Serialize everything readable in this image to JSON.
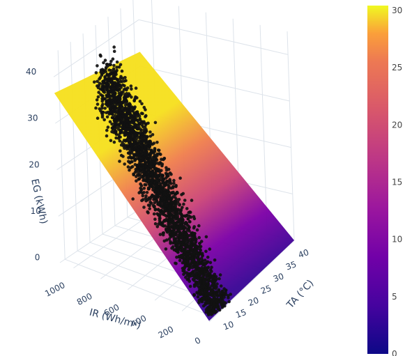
{
  "chart_data": {
    "type": "scatter",
    "subtype": "3d-scatter-with-fitted-plane",
    "axes": {
      "x": {
        "label": "TA (°C)",
        "ticks": [
          "10",
          "15",
          "20",
          "25",
          "30",
          "35",
          "40"
        ],
        "range": [
          8,
          42
        ]
      },
      "y": {
        "label": "IR (Wh/m²)",
        "ticks": [
          "0",
          "200",
          "400",
          "600",
          "800",
          "1000"
        ],
        "range": [
          0,
          1100
        ]
      },
      "z": {
        "label": "EG (kWh)",
        "ticks": [
          "0",
          "10",
          "20",
          "30",
          "40"
        ],
        "range": [
          0,
          45
        ]
      }
    },
    "colorbar": {
      "ticks": [
        "0",
        "5",
        "10",
        "15",
        "20",
        "25",
        "30"
      ],
      "range": [
        0,
        30
      ],
      "colorscale": "plasma"
    },
    "plane": {
      "color_by": "EG",
      "approx_fit": "EG ≈ 0.033 × IR − 0.1 × (TA − 10)"
    },
    "points": {
      "color": "#111111",
      "approx_n": 2600
    },
    "grid": true,
    "legend": "none"
  }
}
